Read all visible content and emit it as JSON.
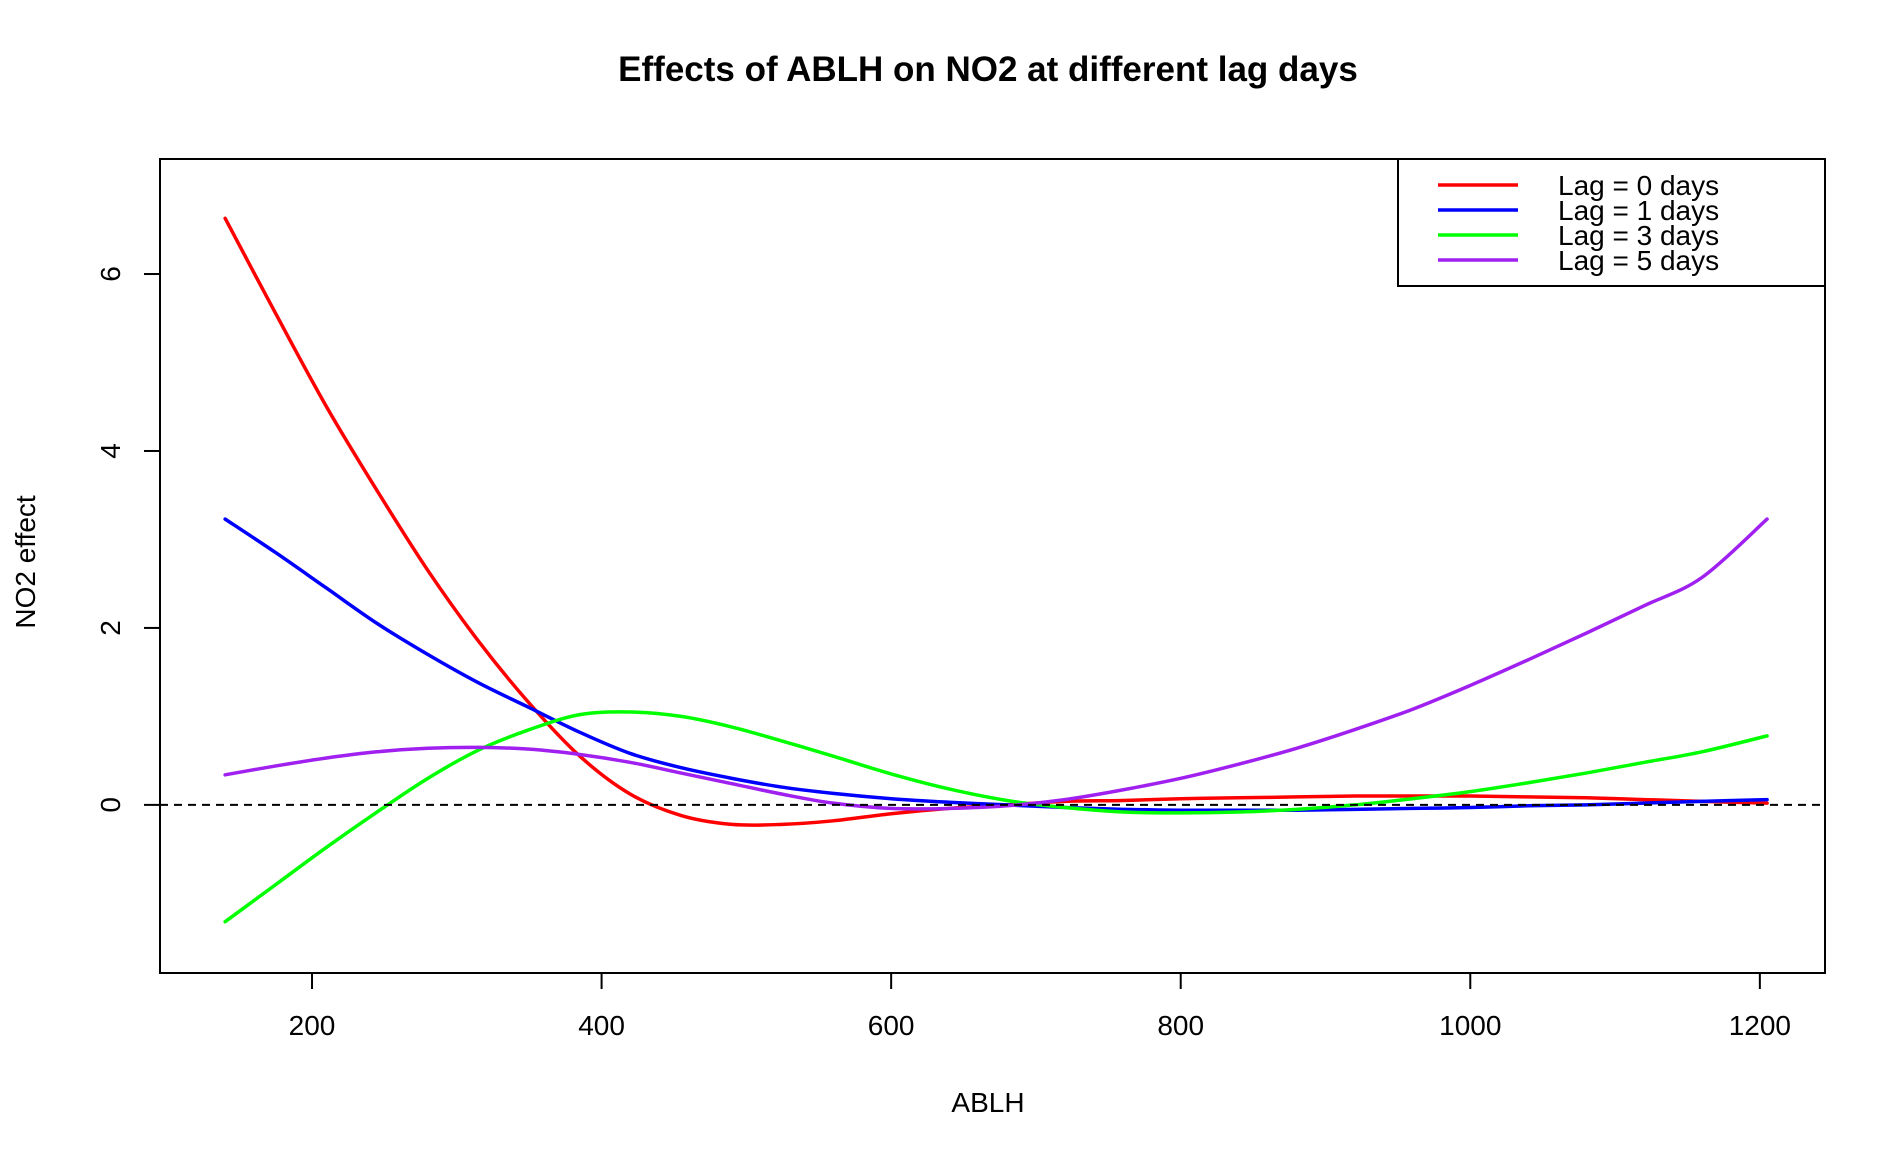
{
  "chart_data": {
    "type": "line",
    "title": "Effects of ABLH on NO2 at different lag days",
    "xlabel": "ABLH",
    "ylabel": "NO2 effect",
    "xlim": [
      95,
      1245
    ],
    "ylim": [
      -1.9,
      7.3
    ],
    "xticks": [
      200,
      400,
      600,
      800,
      1000,
      1200
    ],
    "yticks": [
      0,
      2,
      4,
      6
    ],
    "reference_line": {
      "y": 0,
      "style": "dashed",
      "color": "#000000"
    },
    "grid": false,
    "legend_position": "top-right",
    "x": [
      140,
      175,
      210,
      245,
      280,
      315,
      350,
      385,
      420,
      455,
      490,
      525,
      560,
      600,
      640,
      680,
      720,
      760,
      800,
      840,
      880,
      920,
      960,
      1000,
      1040,
      1080,
      1120,
      1160,
      1205
    ],
    "series": [
      {
        "name": "Lag = 0 days",
        "color": "#ff0000",
        "values": [
          6.63,
          5.55,
          4.5,
          3.55,
          2.65,
          1.85,
          1.15,
          0.55,
          0.12,
          -0.12,
          -0.22,
          -0.22,
          -0.18,
          -0.1,
          -0.04,
          0.0,
          0.04,
          0.05,
          0.07,
          0.08,
          0.09,
          0.1,
          0.1,
          0.1,
          0.09,
          0.08,
          0.06,
          0.04,
          0.02
        ]
      },
      {
        "name": "Lag = 1 days",
        "color": "#0000ff",
        "values": [
          3.23,
          2.85,
          2.45,
          2.05,
          1.7,
          1.38,
          1.1,
          0.82,
          0.58,
          0.42,
          0.3,
          0.2,
          0.13,
          0.07,
          0.03,
          0.0,
          -0.03,
          -0.05,
          -0.06,
          -0.06,
          -0.06,
          -0.05,
          -0.04,
          -0.03,
          -0.01,
          0.0,
          0.02,
          0.04,
          0.06
        ]
      },
      {
        "name": "Lag = 3 days",
        "color": "#00ff00",
        "values": [
          -1.32,
          -0.9,
          -0.48,
          -0.08,
          0.3,
          0.62,
          0.85,
          1.02,
          1.05,
          1.0,
          0.88,
          0.72,
          0.55,
          0.35,
          0.18,
          0.05,
          -0.03,
          -0.08,
          -0.09,
          -0.08,
          -0.05,
          0.0,
          0.07,
          0.15,
          0.25,
          0.36,
          0.48,
          0.6,
          0.78
        ]
      },
      {
        "name": "Lag = 5 days",
        "color": "#a020f0",
        "values": [
          0.34,
          0.44,
          0.53,
          0.6,
          0.64,
          0.65,
          0.63,
          0.57,
          0.48,
          0.36,
          0.24,
          0.12,
          0.02,
          -0.04,
          -0.04,
          -0.01,
          0.06,
          0.17,
          0.3,
          0.46,
          0.64,
          0.85,
          1.08,
          1.35,
          1.64,
          1.94,
          2.25,
          2.57,
          3.23
        ]
      }
    ]
  }
}
